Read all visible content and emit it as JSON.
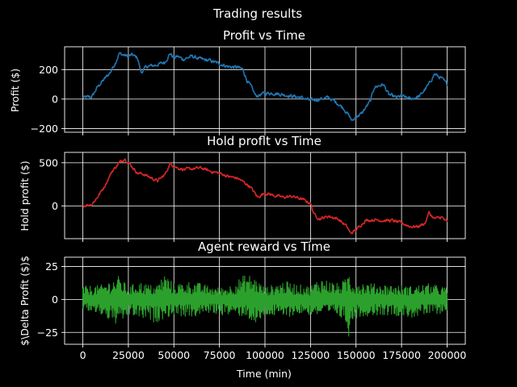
{
  "figure": {
    "suptitle": "Trading results",
    "background": "#000000",
    "foreground": "#ffffff"
  },
  "chart_data": [
    {
      "type": "line",
      "title": "Profit vs Time",
      "xlabel": "",
      "ylabel": "Profit ($)",
      "xlim": [
        -10000,
        210000
      ],
      "ylim": [
        -225,
        355
      ],
      "xticks": [
        0,
        25000,
        50000,
        75000,
        100000,
        125000,
        150000,
        175000,
        200000
      ],
      "xtick_labels": [],
      "yticks": [
        -200,
        0,
        200
      ],
      "ytick_labels": [
        "−200",
        "0",
        "200"
      ],
      "grid": true,
      "color": "#1f77b4",
      "noise": 14,
      "series": [
        {
          "x": [
            0,
            5000,
            8000,
            10000,
            15000,
            18000,
            20000,
            22000,
            25000,
            27000,
            30000,
            32000,
            35000,
            40000,
            45000,
            48000,
            50000,
            52000,
            55000,
            60000,
            65000,
            70000,
            75000,
            80000,
            85000,
            88000,
            90000,
            93000,
            95000,
            100000,
            105000,
            110000,
            115000,
            120000,
            125000,
            130000,
            135000,
            140000,
            143000,
            146000,
            148000,
            150000,
            153000,
            158000,
            160000,
            165000,
            168000,
            172000,
            175000,
            180000,
            185000,
            190000,
            193000,
            197000,
            200000
          ],
          "y": [
            10,
            15,
            80,
            110,
            180,
            250,
            310,
            300,
            290,
            300,
            280,
            180,
            220,
            230,
            250,
            310,
            280,
            290,
            270,
            290,
            270,
            260,
            240,
            220,
            215,
            200,
            130,
            70,
            20,
            40,
            40,
            30,
            20,
            10,
            -10,
            0,
            10,
            -30,
            -60,
            -110,
            -150,
            -120,
            -100,
            -10,
            80,
            100,
            30,
            10,
            20,
            0,
            20,
            100,
            170,
            140,
            100
          ]
        }
      ]
    },
    {
      "type": "line",
      "title": "Hold proflt vs Time",
      "xlabel": "",
      "ylabel": "Hold profit ($)",
      "xlim": [
        -10000,
        210000
      ],
      "ylim": [
        -380,
        620
      ],
      "xticks": [
        0,
        25000,
        50000,
        75000,
        100000,
        125000,
        150000,
        175000,
        200000
      ],
      "xtick_labels": [],
      "yticks": [
        0,
        500
      ],
      "ytick_labels": [
        "0",
        "500"
      ],
      "grid": true,
      "color": "#d62728",
      "noise": 20,
      "series": [
        {
          "x": [
            0,
            5000,
            8000,
            12000,
            16000,
            20000,
            23000,
            26000,
            30000,
            33000,
            37000,
            41000,
            45000,
            48000,
            52000,
            56000,
            60000,
            65000,
            70000,
            75000,
            80000,
            85000,
            88000,
            92000,
            96000,
            100000,
            105000,
            110000,
            115000,
            120000,
            125000,
            127000,
            130000,
            135000,
            140000,
            145000,
            147000,
            150000,
            155000,
            160000,
            165000,
            170000,
            175000,
            180000,
            184000,
            188000,
            190000,
            193000,
            197000,
            200000
          ],
          "y": [
            0,
            20,
            100,
            230,
            400,
            500,
            550,
            480,
            380,
            370,
            330,
            290,
            360,
            490,
            440,
            420,
            430,
            440,
            400,
            380,
            340,
            320,
            280,
            220,
            100,
            150,
            120,
            100,
            110,
            80,
            30,
            -100,
            -150,
            -120,
            -150,
            -240,
            -320,
            -280,
            -170,
            -160,
            -170,
            -170,
            -200,
            -240,
            -240,
            -200,
            -80,
            -150,
            -130,
            -190
          ]
        }
      ]
    },
    {
      "type": "line",
      "title": "Agent reward vs Time",
      "xlabel": "Time (min)",
      "ylabel": "$\\Delta Profit ($)$",
      "xlim": [
        -10000,
        210000
      ],
      "ylim": [
        -34,
        32
      ],
      "xticks": [
        0,
        25000,
        50000,
        75000,
        100000,
        125000,
        150000,
        175000,
        200000
      ],
      "xtick_labels": [
        "0",
        "25000",
        "50000",
        "75000",
        "100000",
        "125000",
        "150000",
        "175000",
        "200000"
      ],
      "yticks": [
        -25,
        0,
        25
      ],
      "ytick_labels": [
        "−25",
        "0",
        "25"
      ],
      "grid": true,
      "color": "#2ca02c",
      "noise": 0,
      "series": [
        {
          "x": [
            0,
            10000,
            20000,
            25000,
            30000,
            40000,
            45000,
            50000,
            60000,
            70000,
            75000,
            80000,
            90000,
            95000,
            100000,
            110000,
            120000,
            125000,
            130000,
            140000,
            145000,
            146000,
            147000,
            150000,
            160000,
            170000,
            180000,
            190000,
            200000
          ],
          "y": [
            10,
            11,
            18,
            9,
            14,
            10,
            20,
            12,
            14,
            10,
            9,
            10,
            20,
            16,
            9,
            14,
            11,
            10,
            17,
            12,
            16,
            25,
            16,
            14,
            12,
            11,
            10,
            12,
            9
          ],
          "envelope_lower": [
            -8,
            -12,
            -21,
            -12,
            -14,
            -18,
            -14,
            -12,
            -14,
            -10,
            -12,
            -12,
            -13,
            -21,
            -12,
            -14,
            -11,
            -12,
            -12,
            -12,
            -20,
            -28,
            -20,
            -14,
            -12,
            -12,
            -14,
            -12,
            -10
          ]
        }
      ]
    }
  ]
}
